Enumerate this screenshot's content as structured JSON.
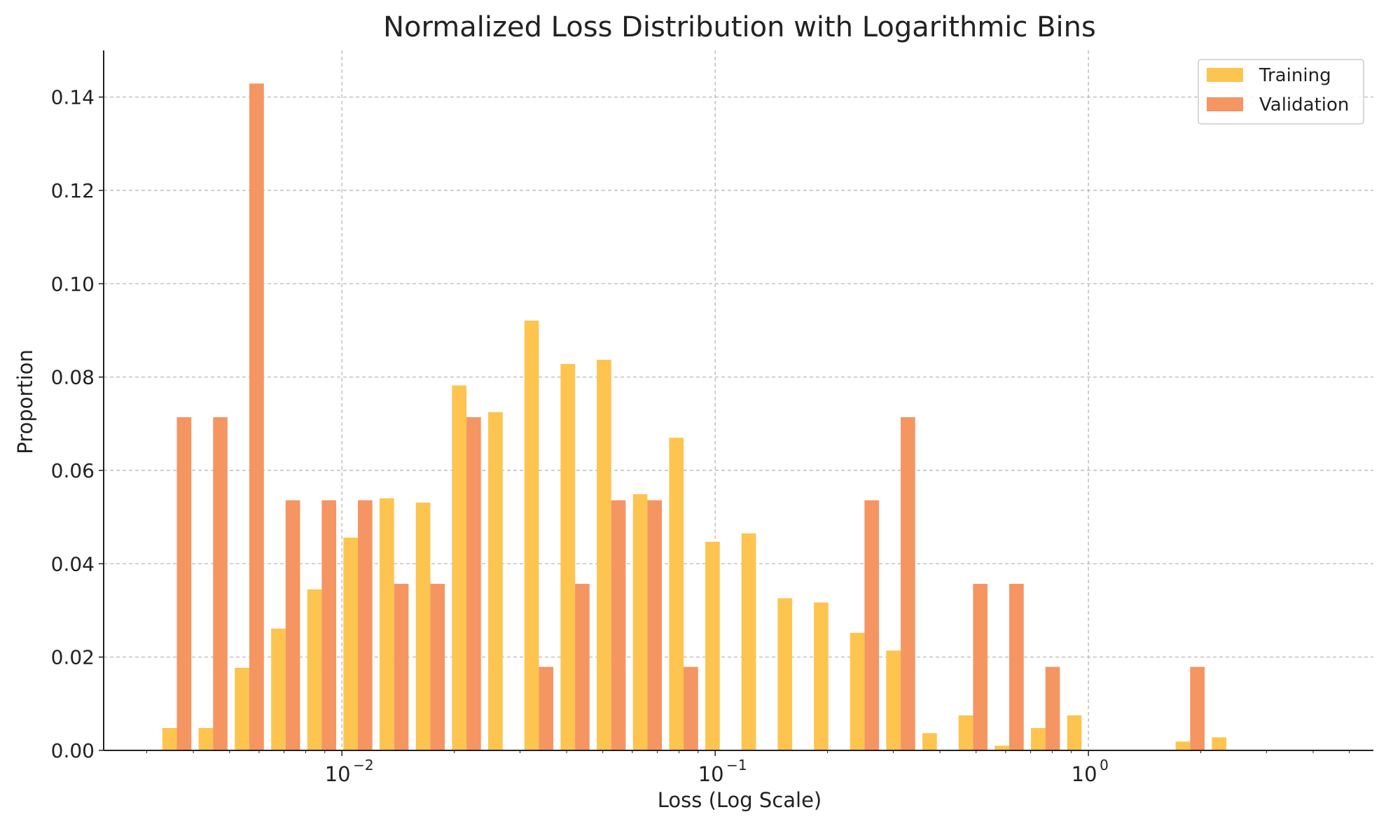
{
  "chart_data": {
    "type": "bar",
    "title": "Normalized Loss Distribution with Logarithmic Bins",
    "xlabel": "Loss (Log Scale)",
    "ylabel": "Proportion",
    "xscale": "log",
    "xlim": [
      0.0023,
      5.8
    ],
    "ylim": [
      0,
      0.15
    ],
    "x_ticks": [
      {
        "value": 0.01,
        "base": "10",
        "exp": "−2"
      },
      {
        "value": 0.1,
        "base": "10",
        "exp": "−1"
      },
      {
        "value": 1,
        "base": "10",
        "exp": "0"
      }
    ],
    "y_ticks": [
      "0.00",
      "0.02",
      "0.04",
      "0.06",
      "0.08",
      "0.10",
      "0.12",
      "0.14"
    ],
    "y_tick_values": [
      0,
      0.02,
      0.04,
      0.06,
      0.08,
      0.1,
      0.12,
      0.14
    ],
    "grid": true,
    "legend_position": "top-right",
    "bin_edges": [
      0.00323,
      0.00404,
      0.00505,
      0.00632,
      0.0079,
      0.00987,
      0.01234,
      0.01543,
      0.01929,
      0.02411,
      0.03015,
      0.03768,
      0.04711,
      0.05889,
      0.07362,
      0.09203,
      0.11504,
      0.14381,
      0.1798,
      0.2247,
      0.2809,
      0.3512,
      0.439,
      0.5487,
      0.686,
      0.8575,
      1.0719,
      1.34,
      1.675,
      2.094,
      2.617,
      3.272,
      4.09
    ],
    "series": [
      {
        "name": "Training",
        "color": "#FDC44F",
        "values": [
          0.0048,
          0.0048,
          0.0177,
          0.0261,
          0.0345,
          0.0456,
          0.054,
          0.0531,
          0.0782,
          0.0725,
          0.0921,
          0.0828,
          0.0837,
          0.0549,
          0.067,
          0.0447,
          0.0465,
          0.0326,
          0.0317,
          0.0252,
          0.0214,
          0.0037,
          0.0075,
          0.001,
          0.0048,
          0.0075,
          0,
          0,
          0.0019,
          0.0028,
          0,
          0
        ]
      },
      {
        "name": "Validation",
        "color": "#F59562",
        "values": [
          0.0714,
          0.0714,
          0.1429,
          0.0536,
          0.0536,
          0.0536,
          0.0357,
          0.0357,
          0.0714,
          0,
          0.0179,
          0.0357,
          0.0536,
          0.0536,
          0.0179,
          0,
          0,
          0,
          0,
          0.0536,
          0.0714,
          0,
          0.0357,
          0.0357,
          0.0179,
          0,
          0,
          0,
          0.0179,
          0,
          0,
          0
        ]
      }
    ]
  }
}
